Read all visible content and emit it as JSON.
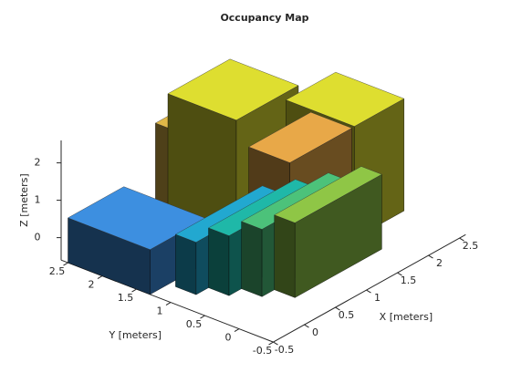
{
  "chart_data": {
    "type": "voxel3d",
    "title": "Occupancy Map",
    "xlabel": "X [meters]",
    "ylabel": "Y [meters]",
    "zlabel": "Z [meters]",
    "xlim": [
      -0.5,
      2.6
    ],
    "ylim": [
      -0.5,
      2.6
    ],
    "zlim": [
      -0.6,
      2.6
    ],
    "xticks": [
      -0.5,
      0,
      0.5,
      1,
      1.5,
      2,
      2.5
    ],
    "yticks": [
      -0.5,
      0,
      0.5,
      1,
      1.5,
      2,
      2.5
    ],
    "zticks": [
      0,
      1,
      2
    ],
    "blocks": [
      {
        "x": [
          -0.5,
          0.4
        ],
        "y": [
          1.3,
          2.5
        ],
        "z": [
          -0.6,
          0.6
        ],
        "color": "#3d8fe0"
      },
      {
        "x": [
          -0.2,
          1.2
        ],
        "y": [
          0.9,
          1.2
        ],
        "z": [
          -0.6,
          0.8
        ],
        "color": "#22a8d0"
      },
      {
        "x": [
          0.0,
          1.4
        ],
        "y": [
          0.6,
          0.9
        ],
        "z": [
          -0.6,
          1.0
        ],
        "color": "#1fb8a8"
      },
      {
        "x": [
          0.2,
          1.6
        ],
        "y": [
          0.3,
          0.6
        ],
        "z": [
          -0.6,
          1.2
        ],
        "color": "#4cc27a"
      },
      {
        "x": [
          0.4,
          1.8
        ],
        "y": [
          0.0,
          0.3
        ],
        "z": [
          -0.6,
          1.4
        ],
        "color": "#8fc646"
      },
      {
        "x": [
          0.8,
          1.6
        ],
        "y": [
          1.6,
          2.4
        ],
        "z": [
          -0.6,
          2.0
        ],
        "color": "#e0b848"
      },
      {
        "x": [
          1.0,
          2.0
        ],
        "y": [
          1.4,
          2.4
        ],
        "z": [
          -0.6,
          2.6
        ],
        "color": "#dede30"
      },
      {
        "x": [
          1.2,
          2.2
        ],
        "y": [
          0.8,
          1.4
        ],
        "z": [
          -0.6,
          1.7
        ],
        "color": "#e8a848"
      },
      {
        "x": [
          1.8,
          2.6
        ],
        "y": [
          0.4,
          1.4
        ],
        "z": [
          -0.6,
          2.4
        ],
        "color": "#dede30"
      }
    ]
  }
}
